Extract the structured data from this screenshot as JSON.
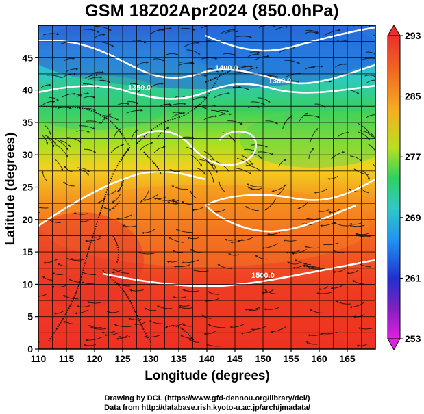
{
  "title": "GSM 18Z02Apr2024 (850.0hPa)",
  "x_axis": {
    "label": "Longitude (degrees)",
    "ticks": [
      "110",
      "115",
      "120",
      "125",
      "130",
      "135",
      "140",
      "145",
      "150",
      "155",
      "160",
      "165"
    ],
    "range": [
      110,
      170
    ]
  },
  "y_axis": {
    "label": "Latitude  (degrees)",
    "ticks": [
      "0",
      "5",
      "10",
      "15",
      "20",
      "25",
      "30",
      "35",
      "40",
      "45"
    ],
    "range": [
      0,
      50
    ]
  },
  "colorbar": {
    "ticks": [
      "253",
      "261",
      "269",
      "277",
      "285",
      "293"
    ],
    "range": [
      253,
      293
    ],
    "colors": [
      "#e020e0",
      "#2020d0",
      "#2090ff",
      "#30c0d0",
      "#30d060",
      "#a0e020",
      "#f0e020",
      "#f8a020",
      "#f05020",
      "#e03030"
    ]
  },
  "contour_labels": [
    {
      "text": "1400.0",
      "lon": 143.5,
      "lat": 43.0
    },
    {
      "text": "1360.0",
      "lon": 153.0,
      "lat": 41.0
    },
    {
      "text": "1350.0",
      "lon": 128.0,
      "lat": 40.0
    },
    {
      "text": "1500.0",
      "lon": 150.0,
      "lat": 11.0
    }
  ],
  "footer": {
    "line1": "Drawing by DCL (https://www.gfd-dennou.org/library/dcl/)",
    "line2": "Data from http://database.rish.kyoto-u.ac.jp/arch/jmadata/"
  }
}
